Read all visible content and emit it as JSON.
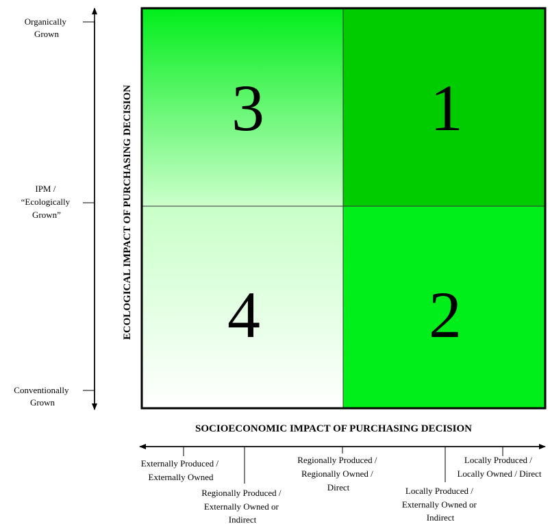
{
  "quadrants": {
    "top_left": "3",
    "top_right": "1",
    "bottom_left": "4",
    "bottom_right": "2"
  },
  "colors": {
    "bright_green": "#00ee1a",
    "dark_green": "#00cc00",
    "pale_green": "#ccffcc",
    "white": "#ffffff"
  },
  "y_axis": {
    "title": "ECOLOGICAL  IMPACT OF PURCHASING DECISION",
    "levels": [
      [
        "Organically",
        "Grown"
      ],
      [
        "IPM /",
        "“Ecologically",
        "Grown”"
      ],
      [
        "Conventionally",
        "Grown"
      ]
    ]
  },
  "x_axis": {
    "title": "SOCIOECONOMIC IMPACT OF PURCHASING DECISION",
    "levels": [
      [
        "Externally Produced /",
        "Externally Owned"
      ],
      [
        "Regionally Produced /",
        "Externally Owned or",
        "Indirect"
      ],
      [
        "Regionally Produced /",
        "Regionally Owned /",
        "Direct"
      ],
      [
        "Locally Produced /",
        "Externally Owned or",
        "Indirect"
      ],
      [
        "Locally Produced /",
        "Locally Owned / Direct"
      ]
    ]
  }
}
